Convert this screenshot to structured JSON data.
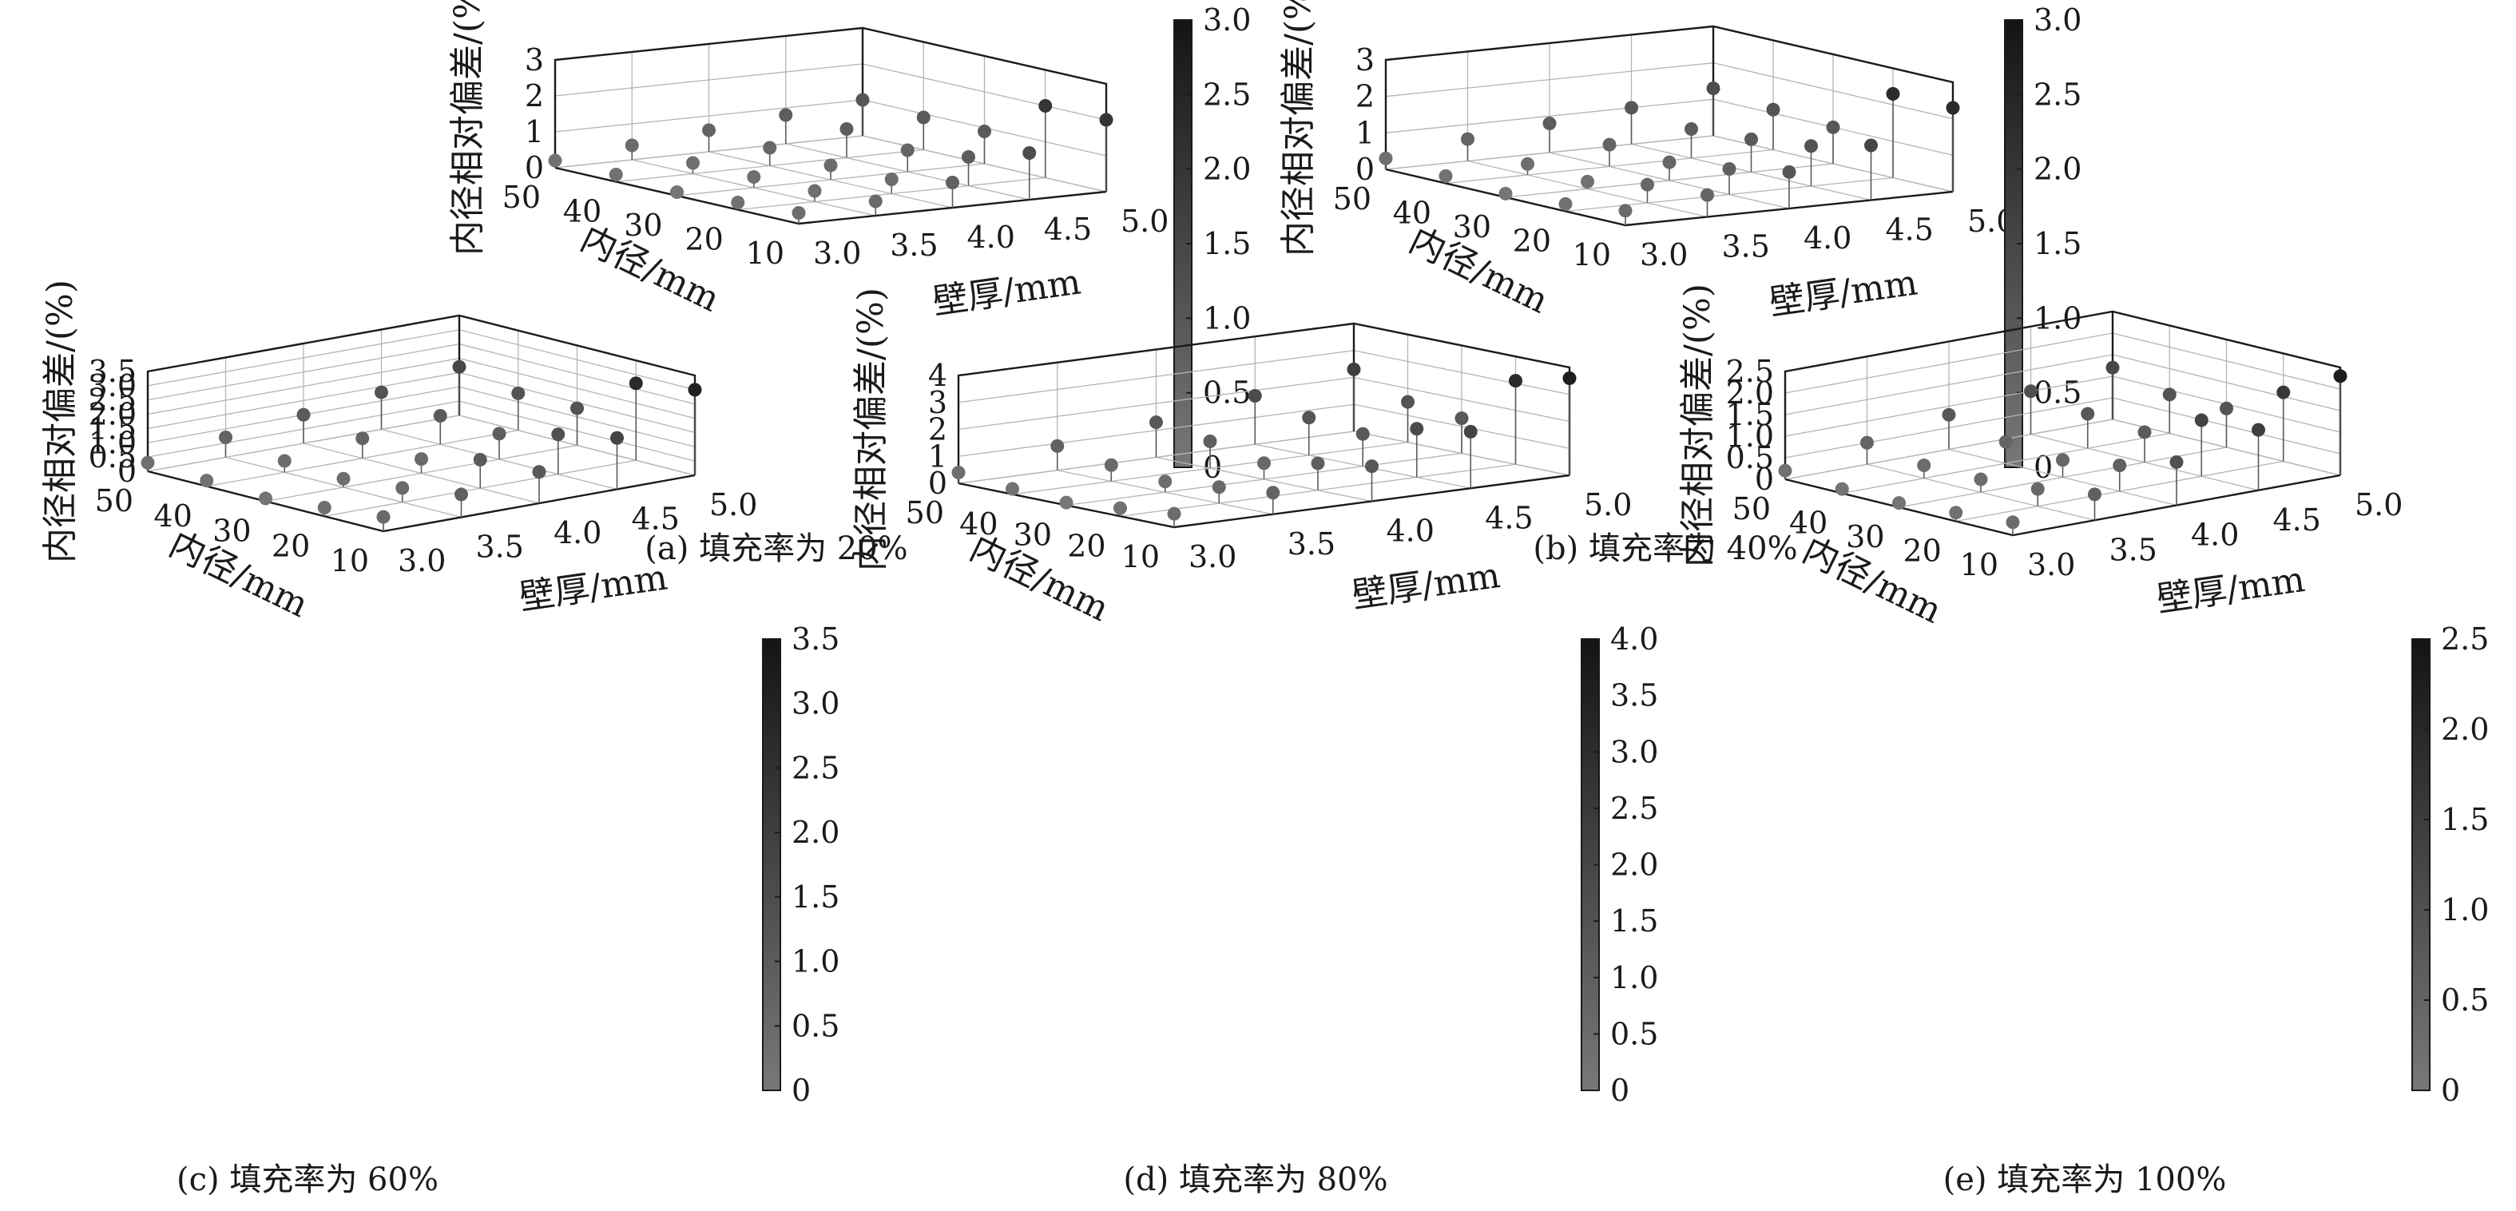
{
  "figure": {
    "panels": [
      {
        "caption": "(a)  填充率为 20%",
        "zlabel": "内径相对偏差/(%)",
        "xlabel": "壁厚/mm",
        "ylabel": "内径/mm"
      },
      {
        "caption": "(b)  填充率为 40%",
        "zlabel": "内径相对偏差/(%)",
        "xlabel": "壁厚/mm",
        "ylabel": "内径/mm"
      },
      {
        "caption": "(c)  填充率为 60%",
        "zlabel": "内径相对偏差/(%)",
        "xlabel": "壁厚/mm",
        "ylabel": "内径/mm"
      },
      {
        "caption": "(d)  填充率为 80%",
        "zlabel": "内径相对偏差/(%)",
        "xlabel": "壁厚/mm",
        "ylabel": "内径/mm"
      },
      {
        "caption": "(e)  填充率为 100%",
        "zlabel": "内径相对偏差/(%)",
        "xlabel": "壁厚/mm",
        "ylabel": "内径/mm"
      }
    ]
  },
  "chart_data": [
    {
      "type": "scatter3d",
      "x_label": "壁厚/mm",
      "y_label": "内径/mm",
      "z_label": "内径相对偏差/(%)",
      "x_ticks": [
        "3.0",
        "3.5",
        "4.0",
        "4.5",
        "5.0"
      ],
      "y_ticks": [
        "10",
        "20",
        "30",
        "40",
        "50"
      ],
      "z_ticks": [
        "0",
        "1",
        "2",
        "3"
      ],
      "xlim": [
        3.0,
        5.0
      ],
      "ylim": [
        10,
        50
      ],
      "zlim": [
        0,
        3
      ],
      "colorbar": {
        "ticks": [
          "0",
          "0.5",
          "1.0",
          "1.5",
          "2.0",
          "2.5",
          "3.0"
        ],
        "range": [
          0,
          3.0
        ]
      },
      "points": [
        {
          "x": 3.0,
          "y": 50,
          "z": 0.2
        },
        {
          "x": 3.5,
          "y": 50,
          "z": 0.4
        },
        {
          "x": 4.0,
          "y": 50,
          "z": 0.6
        },
        {
          "x": 4.5,
          "y": 50,
          "z": 0.8
        },
        {
          "x": 5.0,
          "y": 50,
          "z": 1.0
        },
        {
          "x": 3.0,
          "y": 40,
          "z": 0.2
        },
        {
          "x": 3.5,
          "y": 40,
          "z": 0.3
        },
        {
          "x": 4.0,
          "y": 40,
          "z": 0.5
        },
        {
          "x": 4.5,
          "y": 40,
          "z": 0.8
        },
        {
          "x": 5.0,
          "y": 40,
          "z": 0.9
        },
        {
          "x": 3.0,
          "y": 30,
          "z": 0.1
        },
        {
          "x": 3.5,
          "y": 30,
          "z": 0.3
        },
        {
          "x": 4.0,
          "y": 30,
          "z": 0.4
        },
        {
          "x": 4.5,
          "y": 30,
          "z": 0.6
        },
        {
          "x": 5.0,
          "y": 30,
          "z": 0.9
        },
        {
          "x": 3.0,
          "y": 20,
          "z": 0.2
        },
        {
          "x": 3.5,
          "y": 20,
          "z": 0.3
        },
        {
          "x": 4.0,
          "y": 20,
          "z": 0.4
        },
        {
          "x": 4.5,
          "y": 20,
          "z": 0.8
        },
        {
          "x": 5.0,
          "y": 20,
          "z": 2.0
        },
        {
          "x": 3.0,
          "y": 10,
          "z": 0.3
        },
        {
          "x": 3.5,
          "y": 10,
          "z": 0.4
        },
        {
          "x": 4.0,
          "y": 10,
          "z": 0.7
        },
        {
          "x": 4.5,
          "y": 10,
          "z": 1.3
        },
        {
          "x": 5.0,
          "y": 10,
          "z": 2.0
        }
      ]
    },
    {
      "type": "scatter3d",
      "x_label": "壁厚/mm",
      "y_label": "内径/mm",
      "z_label": "内径相对偏差/(%)",
      "x_ticks": [
        "3.0",
        "3.5",
        "4.0",
        "4.5",
        "5.0"
      ],
      "y_ticks": [
        "10",
        "20",
        "30",
        "40",
        "50"
      ],
      "z_ticks": [
        "0",
        "1",
        "2",
        "3"
      ],
      "xlim": [
        3.0,
        5.0
      ],
      "ylim": [
        10,
        50
      ],
      "zlim": [
        0,
        3
      ],
      "colorbar": {
        "ticks": [
          "0",
          "0.5",
          "1.0",
          "1.5",
          "2.0",
          "2.5",
          "3.0"
        ],
        "range": [
          0,
          3.0
        ]
      },
      "points": [
        {
          "x": 3.0,
          "y": 50,
          "z": 0.3
        },
        {
          "x": 3.5,
          "y": 50,
          "z": 0.6
        },
        {
          "x": 4.0,
          "y": 50,
          "z": 0.8
        },
        {
          "x": 4.5,
          "y": 50,
          "z": 1.0
        },
        {
          "x": 5.0,
          "y": 50,
          "z": 1.3
        },
        {
          "x": 3.0,
          "y": 40,
          "z": 0.2
        },
        {
          "x": 3.5,
          "y": 40,
          "z": 0.3
        },
        {
          "x": 4.0,
          "y": 40,
          "z": 0.6
        },
        {
          "x": 4.5,
          "y": 40,
          "z": 0.8
        },
        {
          "x": 5.0,
          "y": 40,
          "z": 1.1
        },
        {
          "x": 3.0,
          "y": 30,
          "z": 0.1
        },
        {
          "x": 3.5,
          "y": 30,
          "z": 0.2
        },
        {
          "x": 4.0,
          "y": 30,
          "z": 0.5
        },
        {
          "x": 4.5,
          "y": 30,
          "z": 0.9
        },
        {
          "x": 5.0,
          "y": 30,
          "z": 1.0
        },
        {
          "x": 3.0,
          "y": 20,
          "z": 0.2
        },
        {
          "x": 3.5,
          "y": 20,
          "z": 0.5
        },
        {
          "x": 4.0,
          "y": 20,
          "z": 0.7
        },
        {
          "x": 4.5,
          "y": 20,
          "z": 1.1
        },
        {
          "x": 5.0,
          "y": 20,
          "z": 2.3
        },
        {
          "x": 3.0,
          "y": 10,
          "z": 0.4
        },
        {
          "x": 3.5,
          "y": 10,
          "z": 0.6
        },
        {
          "x": 4.0,
          "y": 10,
          "z": 1.0
        },
        {
          "x": 4.5,
          "y": 10,
          "z": 1.5
        },
        {
          "x": 5.0,
          "y": 10,
          "z": 2.3
        }
      ]
    },
    {
      "type": "scatter3d",
      "x_label": "壁厚/mm",
      "y_label": "内径/mm",
      "z_label": "内径相对偏差/(%)",
      "x_ticks": [
        "3.0",
        "3.5",
        "4.0",
        "4.5",
        "5.0"
      ],
      "y_ticks": [
        "10",
        "20",
        "30",
        "40",
        "50"
      ],
      "z_ticks": [
        "0",
        "0.5",
        "1.0",
        "1.5",
        "2.0",
        "2.5",
        "3.0",
        "3.5"
      ],
      "xlim": [
        3.0,
        5.0
      ],
      "ylim": [
        10,
        50
      ],
      "zlim": [
        0,
        3.5
      ],
      "colorbar": {
        "ticks": [
          "0",
          "0.5",
          "1.0",
          "1.5",
          "2.0",
          "2.5",
          "3.0",
          "3.5"
        ],
        "range": [
          0,
          3.5
        ]
      },
      "points": [
        {
          "x": 3.0,
          "y": 50,
          "z": 0.3
        },
        {
          "x": 3.5,
          "y": 50,
          "z": 0.7
        },
        {
          "x": 4.0,
          "y": 50,
          "z": 1.0
        },
        {
          "x": 4.5,
          "y": 50,
          "z": 1.3
        },
        {
          "x": 5.0,
          "y": 50,
          "z": 1.7
        },
        {
          "x": 3.0,
          "y": 40,
          "z": 0.2
        },
        {
          "x": 3.5,
          "y": 40,
          "z": 0.4
        },
        {
          "x": 4.0,
          "y": 40,
          "z": 0.7
        },
        {
          "x": 4.5,
          "y": 40,
          "z": 1.0
        },
        {
          "x": 5.0,
          "y": 40,
          "z": 1.3
        },
        {
          "x": 3.0,
          "y": 30,
          "z": 0.1
        },
        {
          "x": 3.5,
          "y": 30,
          "z": 0.3
        },
        {
          "x": 4.0,
          "y": 30,
          "z": 0.5
        },
        {
          "x": 4.5,
          "y": 30,
          "z": 0.9
        },
        {
          "x": 5.0,
          "y": 30,
          "z": 1.3
        },
        {
          "x": 3.0,
          "y": 20,
          "z": 0.3
        },
        {
          "x": 3.5,
          "y": 20,
          "z": 0.5
        },
        {
          "x": 4.0,
          "y": 20,
          "z": 1.0
        },
        {
          "x": 4.5,
          "y": 20,
          "z": 1.4
        },
        {
          "x": 5.0,
          "y": 20,
          "z": 2.7
        },
        {
          "x": 3.0,
          "y": 10,
          "z": 0.5
        },
        {
          "x": 3.5,
          "y": 10,
          "z": 0.8
        },
        {
          "x": 4.0,
          "y": 10,
          "z": 1.1
        },
        {
          "x": 4.5,
          "y": 10,
          "z": 1.8
        },
        {
          "x": 5.0,
          "y": 10,
          "z": 3.0
        }
      ]
    },
    {
      "type": "scatter3d",
      "x_label": "壁厚/mm",
      "y_label": "内径/mm",
      "z_label": "内径相对偏差/(%)",
      "x_ticks": [
        "3.0",
        "3.5",
        "4.0",
        "4.5",
        "5.0"
      ],
      "y_ticks": [
        "10",
        "20",
        "30",
        "40",
        "50"
      ],
      "z_ticks": [
        "0",
        "1",
        "2",
        "3",
        "4"
      ],
      "xlim": [
        3.0,
        5.0
      ],
      "ylim": [
        10,
        50
      ],
      "zlim": [
        0,
        4
      ],
      "colorbar": {
        "ticks": [
          "0",
          "0.5",
          "1.0",
          "1.5",
          "2.0",
          "2.5",
          "3.0",
          "3.5",
          "4.0"
        ],
        "range": [
          0,
          4.0
        ]
      },
      "points": [
        {
          "x": 3.0,
          "y": 50,
          "z": 0.4
        },
        {
          "x": 3.5,
          "y": 50,
          "z": 0.9
        },
        {
          "x": 4.0,
          "y": 50,
          "z": 1.3
        },
        {
          "x": 4.5,
          "y": 50,
          "z": 1.8
        },
        {
          "x": 5.0,
          "y": 50,
          "z": 2.3
        },
        {
          "x": 3.0,
          "y": 40,
          "z": 0.2
        },
        {
          "x": 3.5,
          "y": 40,
          "z": 0.6
        },
        {
          "x": 4.0,
          "y": 40,
          "z": 1.0
        },
        {
          "x": 4.5,
          "y": 40,
          "z": 1.4
        },
        {
          "x": 5.0,
          "y": 40,
          "z": 1.5
        },
        {
          "x": 3.0,
          "y": 30,
          "z": 0.1
        },
        {
          "x": 3.5,
          "y": 30,
          "z": 0.4
        },
        {
          "x": 4.0,
          "y": 30,
          "z": 0.6
        },
        {
          "x": 4.5,
          "y": 30,
          "z": 1.2
        },
        {
          "x": 5.0,
          "y": 30,
          "z": 1.3
        },
        {
          "x": 3.0,
          "y": 20,
          "z": 0.3
        },
        {
          "x": 3.5,
          "y": 20,
          "z": 0.6
        },
        {
          "x": 4.0,
          "y": 20,
          "z": 1.0
        },
        {
          "x": 4.5,
          "y": 20,
          "z": 1.8
        },
        {
          "x": 5.0,
          "y": 20,
          "z": 3.1
        },
        {
          "x": 3.0,
          "y": 10,
          "z": 0.5
        },
        {
          "x": 3.5,
          "y": 10,
          "z": 0.8
        },
        {
          "x": 4.0,
          "y": 10,
          "z": 1.3
        },
        {
          "x": 4.5,
          "y": 10,
          "z": 2.1
        },
        {
          "x": 5.0,
          "y": 10,
          "z": 3.6
        }
      ]
    },
    {
      "type": "scatter3d",
      "x_label": "壁厚/mm",
      "y_label": "内径/mm",
      "z_label": "内径相对偏差/(%)",
      "x_ticks": [
        "3.0",
        "3.5",
        "4.0",
        "4.5",
        "5.0"
      ],
      "y_ticks": [
        "10",
        "20",
        "30",
        "40",
        "50"
      ],
      "z_ticks": [
        "0",
        "0.5",
        "1.0",
        "1.5",
        "2.0",
        "2.5"
      ],
      "xlim": [
        3.0,
        5.0
      ],
      "ylim": [
        10,
        50
      ],
      "zlim": [
        0,
        2.5
      ],
      "colorbar": {
        "ticks": [
          "0",
          "0.5",
          "1.0",
          "1.5",
          "2.0",
          "2.5"
        ],
        "range": [
          0,
          2.5
        ]
      },
      "points": [
        {
          "x": 3.0,
          "y": 50,
          "z": 0.2
        },
        {
          "x": 3.5,
          "y": 50,
          "z": 0.5
        },
        {
          "x": 4.0,
          "y": 50,
          "z": 0.8
        },
        {
          "x": 4.5,
          "y": 50,
          "z": 1.0
        },
        {
          "x": 5.0,
          "y": 50,
          "z": 1.2
        },
        {
          "x": 3.0,
          "y": 40,
          "z": 0.1
        },
        {
          "x": 3.5,
          "y": 40,
          "z": 0.3
        },
        {
          "x": 4.0,
          "y": 40,
          "z": 0.5
        },
        {
          "x": 4.5,
          "y": 40,
          "z": 0.8
        },
        {
          "x": 5.0,
          "y": 40,
          "z": 0.9
        },
        {
          "x": 3.0,
          "y": 30,
          "z": 0.1
        },
        {
          "x": 3.5,
          "y": 30,
          "z": 0.3
        },
        {
          "x": 4.0,
          "y": 30,
          "z": 0.4
        },
        {
          "x": 4.5,
          "y": 30,
          "z": 0.7
        },
        {
          "x": 5.0,
          "y": 30,
          "z": 0.9
        },
        {
          "x": 3.0,
          "y": 20,
          "z": 0.2
        },
        {
          "x": 3.5,
          "y": 20,
          "z": 0.4
        },
        {
          "x": 4.0,
          "y": 20,
          "z": 0.6
        },
        {
          "x": 4.5,
          "y": 20,
          "z": 1.3
        },
        {
          "x": 5.0,
          "y": 20,
          "z": 1.6
        },
        {
          "x": 3.0,
          "y": 10,
          "z": 0.3
        },
        {
          "x": 3.5,
          "y": 10,
          "z": 0.6
        },
        {
          "x": 4.0,
          "y": 10,
          "z": 1.0
        },
        {
          "x": 4.5,
          "y": 10,
          "z": 1.4
        },
        {
          "x": 5.0,
          "y": 10,
          "z": 2.3
        }
      ]
    }
  ]
}
